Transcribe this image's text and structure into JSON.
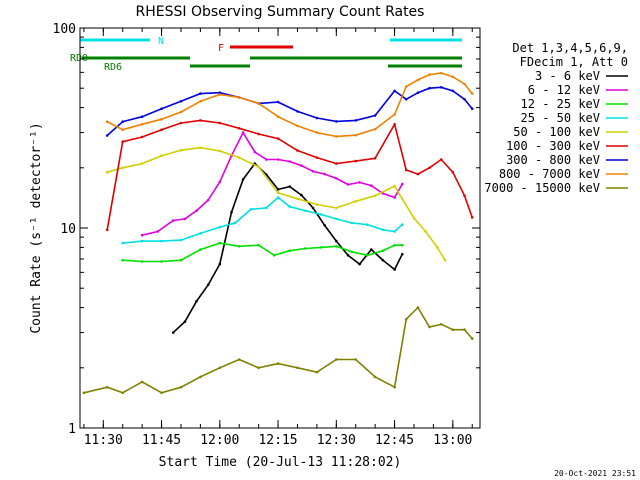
{
  "chart_data": {
    "type": "line",
    "title": "RHESSI Observing Summary Count Rates",
    "xlabel": "Start Time (20-Jul-13 11:28:02)",
    "ylabel": "Count Rate (s⁻¹ detector⁻¹)",
    "y_scale": "log",
    "ylim": [
      1,
      100
    ],
    "x_unit": "minutes",
    "xlim": [
      "11:24",
      "13:07"
    ],
    "x_ticks": [
      "11:30",
      "11:45",
      "12:00",
      "12:15",
      "12:30",
      "12:45",
      "13:00"
    ],
    "y_ticks": [
      "1",
      "10",
      "100"
    ],
    "grid": false,
    "legend_position": "right",
    "legend_header": [
      "Det 1,3,4,5,6,9,",
      "FDecim 1, Att 0"
    ],
    "timestamp": "20-Oct-2021 23:51",
    "series": [
      {
        "name": "3 - 6 keV",
        "color": "#000000",
        "x": [
          "11:48",
          "11:51",
          "11:54",
          "11:57",
          "12:00",
          "12:03",
          "12:06",
          "12:09",
          "12:12",
          "12:15",
          "12:18",
          "12:21",
          "12:24",
          "12:27",
          "12:30",
          "12:33",
          "12:36",
          "12:39",
          "12:42",
          "12:45",
          "12:47"
        ],
        "y": [
          3.0,
          3.4,
          4.3,
          5.2,
          6.6,
          12,
          17.5,
          21,
          18.5,
          15.6,
          16.1,
          14.6,
          12.6,
          10.3,
          8.6,
          7.3,
          6.6,
          7.8,
          6.9,
          6.2,
          7.4
        ]
      },
      {
        "name": "6 - 12 keV",
        "color": "#e000e0",
        "x": [
          "11:40",
          "11:44",
          "11:48",
          "11:51",
          "11:54",
          "11:57",
          "12:00",
          "12:03",
          "12:06",
          "12:09",
          "12:12",
          "12:15",
          "12:18",
          "12:21",
          "12:24",
          "12:27",
          "12:30",
          "12:33",
          "12:36",
          "12:39",
          "12:42",
          "12:45",
          "12:47"
        ],
        "y": [
          9.2,
          9.6,
          10.9,
          11.1,
          12.2,
          13.8,
          17,
          23,
          30,
          24,
          22,
          22,
          21.5,
          20.5,
          19.2,
          18.6,
          17.7,
          16.5,
          16.9,
          16.3,
          14.9,
          14.2,
          16.6
        ]
      },
      {
        "name": "12 - 25 keV",
        "color": "#00e000",
        "x": [
          "11:35",
          "11:40",
          "11:45",
          "11:50",
          "11:55",
          "12:00",
          "12:05",
          "12:10",
          "12:14",
          "12:18",
          "12:22",
          "12:26",
          "12:30",
          "12:34",
          "12:38",
          "12:42",
          "12:45",
          "12:47"
        ],
        "y": [
          6.9,
          6.8,
          6.8,
          6.9,
          7.8,
          8.4,
          8.1,
          8.2,
          7.3,
          7.7,
          7.9,
          8.0,
          8.1,
          7.6,
          7.3,
          7.7,
          8.2,
          8.2
        ]
      },
      {
        "name": "25 - 50 keV",
        "color": "#00e0e0",
        "x": [
          "11:35",
          "11:40",
          "11:45",
          "11:50",
          "11:55",
          "12:00",
          "12:04",
          "12:08",
          "12:12",
          "12:15",
          "12:18",
          "12:22",
          "12:26",
          "12:30",
          "12:34",
          "12:38",
          "12:42",
          "12:45",
          "12:47"
        ],
        "y": [
          8.4,
          8.6,
          8.6,
          8.7,
          9.4,
          10.1,
          10.6,
          12.4,
          12.6,
          14.2,
          12.8,
          12.2,
          11.7,
          11.1,
          10.6,
          10.4,
          9.8,
          9.6,
          10.4
        ]
      },
      {
        "name": "50 - 100 keV",
        "color": "#d0d000",
        "x": [
          "11:31",
          "11:35",
          "11:40",
          "11:45",
          "11:50",
          "11:55",
          "12:00",
          "12:05",
          "12:10",
          "12:15",
          "12:20",
          "12:25",
          "12:30",
          "12:35",
          "12:40",
          "12:45",
          "12:50",
          "12:53",
          "12:56",
          "12:58"
        ],
        "y": [
          19,
          20,
          21,
          23,
          24.5,
          25.2,
          24.3,
          22.5,
          20.2,
          15,
          14,
          13.1,
          12.6,
          13.6,
          14.5,
          16.2,
          11.2,
          9.6,
          8.0,
          6.9
        ]
      },
      {
        "name": "100 - 300 keV",
        "color": "#e00000",
        "x": [
          "11:31",
          "11:35",
          "11:40",
          "11:45",
          "11:50",
          "11:55",
          "12:00",
          "12:05",
          "12:10",
          "12:15",
          "12:20",
          "12:25",
          "12:30",
          "12:35",
          "12:40",
          "12:45",
          "12:48",
          "12:51",
          "12:54",
          "12:57",
          "13:00",
          "13:03",
          "13:05"
        ],
        "y": [
          9.8,
          27,
          28.5,
          31,
          33.5,
          34.5,
          33.5,
          31.5,
          29.5,
          28.0,
          24.4,
          22.5,
          21.0,
          21.6,
          22.3,
          33.0,
          19.5,
          18.6,
          20.0,
          22.0,
          19.0,
          14.5,
          11.3
        ]
      },
      {
        "name": "300 - 800 keV",
        "color": "#0000e0",
        "x": [
          "11:31",
          "11:35",
          "11:40",
          "11:45",
          "11:50",
          "11:55",
          "12:00",
          "12:05",
          "12:10",
          "12:15",
          "12:20",
          "12:25",
          "12:30",
          "12:35",
          "12:40",
          "12:45",
          "12:48",
          "12:51",
          "12:54",
          "12:57",
          "13:00",
          "13:03",
          "13:05"
        ],
        "y": [
          29,
          34,
          36,
          39.5,
          43,
          47,
          47.5,
          45,
          42,
          42.6,
          38.3,
          35.5,
          34.1,
          34.5,
          36.5,
          48.5,
          44,
          47.5,
          50,
          50.5,
          48.5,
          44,
          39.5
        ]
      },
      {
        "name": "800 - 7000 keV",
        "color": "#f08000",
        "x": [
          "11:31",
          "11:35",
          "11:40",
          "11:45",
          "11:50",
          "11:55",
          "12:00",
          "12:05",
          "12:10",
          "12:15",
          "12:20",
          "12:25",
          "12:30",
          "12:35",
          "12:40",
          "12:45",
          "12:48",
          "12:51",
          "12:54",
          "12:57",
          "13:00",
          "13:03",
          "13:05"
        ],
        "y": [
          34,
          31,
          33,
          35,
          38,
          43,
          46.5,
          45,
          42,
          36,
          32.4,
          30,
          28.7,
          29.1,
          31.2,
          37,
          51,
          55,
          58.5,
          59.5,
          57,
          52.5,
          47
        ]
      },
      {
        "name": "7000 - 15000 keV",
        "color": "#808000",
        "x": [
          "11:25",
          "11:31",
          "11:35",
          "11:40",
          "11:45",
          "11:50",
          "11:55",
          "12:00",
          "12:05",
          "12:10",
          "12:15",
          "12:20",
          "12:25",
          "12:30",
          "12:35",
          "12:40",
          "12:45",
          "12:48",
          "12:51",
          "12:54",
          "12:57",
          "13:00",
          "13:03",
          "13:05"
        ],
        "y": [
          1.5,
          1.6,
          1.5,
          1.7,
          1.5,
          1.6,
          1.8,
          2.0,
          2.2,
          2.0,
          2.1,
          2.0,
          1.9,
          2.2,
          2.2,
          1.8,
          1.6,
          3.5,
          4.0,
          3.2,
          3.3,
          3.1,
          3.1,
          2.8
        ]
      }
    ],
    "flags": [
      {
        "label": "N",
        "color": "#00e0e0"
      },
      {
        "label": "F",
        "color": "#e00000"
      },
      {
        "label": "RD0",
        "color": "#008000"
      },
      {
        "label": "RD6",
        "color": "#008000"
      }
    ]
  }
}
